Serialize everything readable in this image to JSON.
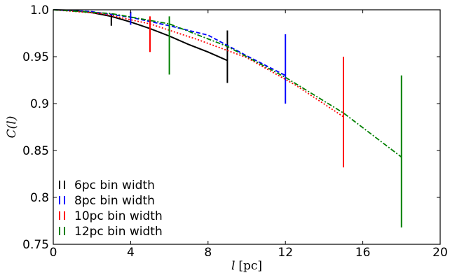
{
  "chart_data": {
    "type": "line",
    "xlabel_var": "l",
    "xlabel_unit": "[pc]",
    "ylabel": "C(l)",
    "xlim": [
      0,
      20
    ],
    "ylim": [
      0.75,
      1.0
    ],
    "xticks": [
      0,
      4,
      8,
      12,
      16,
      20
    ],
    "xtick_labels": [
      "0",
      "4",
      "8",
      "12",
      "16",
      "20"
    ],
    "yticks": [
      0.75,
      0.8,
      0.85,
      0.9,
      0.95,
      1.0
    ],
    "ytick_labels": [
      "0.75",
      "0.8",
      "0.85",
      "0.9",
      "0.95",
      "1.0"
    ],
    "grid": false,
    "legend_position": "bottom-left",
    "series": [
      {
        "name": "6pc bin width",
        "color": "#000000",
        "style": "solid",
        "x": [
          0,
          1,
          2,
          3,
          4,
          5,
          6,
          7,
          8,
          9
        ],
        "y": [
          1.0,
          0.9995,
          0.997,
          0.993,
          0.987,
          0.98,
          0.972,
          0.963,
          0.955,
          0.946
        ],
        "errorbars": [
          {
            "x": 3,
            "low": 0.983,
            "high": 0.996
          },
          {
            "x": 9,
            "low": 0.922,
            "high": 0.978
          }
        ]
      },
      {
        "name": "8pc bin width",
        "color": "#0000ff",
        "style": "dashed",
        "x": [
          0,
          2,
          4,
          6,
          8,
          10,
          12
        ],
        "y": [
          1.0,
          0.998,
          0.992,
          0.983,
          0.973,
          0.951,
          0.93
        ],
        "errorbars": [
          {
            "x": 4,
            "low": 0.984,
            "high": 0.998
          },
          {
            "x": 12,
            "low": 0.9,
            "high": 0.974
          }
        ]
      },
      {
        "name": "10pc bin width",
        "color": "#ff0000",
        "style": "dotted",
        "x": [
          0,
          2.5,
          5,
          7.5,
          10,
          12.5,
          15
        ],
        "y": [
          1.0,
          0.996,
          0.985,
          0.968,
          0.949,
          0.92,
          0.886
        ],
        "errorbars": [
          {
            "x": 5,
            "low": 0.955,
            "high": 0.993
          },
          {
            "x": 15,
            "low": 0.832,
            "high": 0.95
          }
        ]
      },
      {
        "name": "12pc bin width",
        "color": "#008000",
        "style": "dashdot",
        "x": [
          0,
          3,
          6,
          9,
          12,
          15,
          18
        ],
        "y": [
          1.0,
          0.996,
          0.985,
          0.961,
          0.928,
          0.89,
          0.843
        ],
        "errorbars": [
          {
            "x": 6,
            "low": 0.931,
            "high": 0.993
          },
          {
            "x": 18,
            "low": 0.768,
            "high": 0.93
          }
        ]
      }
    ]
  }
}
